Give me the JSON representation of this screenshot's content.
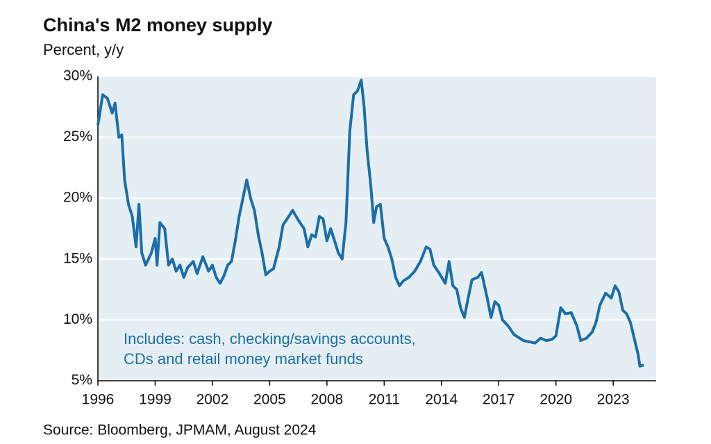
{
  "chart_data": {
    "type": "line",
    "title": "China's M2 money supply",
    "subtitle": "Percent, y/y",
    "source": "Source: Bloomberg, JPMAM, August 2024",
    "annotation": [
      "Includes: cash, checking/savings accounts,",
      "CDs and retail money market funds"
    ],
    "color": "#1b6ea7",
    "grid": true,
    "xlim": [
      1996,
      2025.25
    ],
    "xticks": [
      1996,
      1999,
      2002,
      2005,
      2008,
      2011,
      2014,
      2017,
      2020,
      2023
    ],
    "ylim": [
      5,
      30
    ],
    "yticks": [
      {
        "value": 5,
        "label": "5%"
      },
      {
        "value": 10,
        "label": "10%"
      },
      {
        "value": 15,
        "label": "15%"
      },
      {
        "value": 20,
        "label": "20%"
      },
      {
        "value": 25,
        "label": "25%"
      },
      {
        "value": 30,
        "label": "30%"
      }
    ],
    "x": [
      1996.0,
      1996.25,
      1996.5,
      1996.75,
      1996.9,
      1997.1,
      1997.25,
      1997.4,
      1997.6,
      1997.8,
      1998.0,
      1998.15,
      1998.3,
      1998.5,
      1998.8,
      1999.0,
      1999.1,
      1999.25,
      1999.5,
      1999.7,
      1999.9,
      2000.1,
      2000.3,
      2000.5,
      2000.7,
      2001.0,
      2001.2,
      2001.5,
      2001.8,
      2002.0,
      2002.2,
      2002.4,
      2002.6,
      2002.8,
      2003.0,
      2003.2,
      2003.4,
      2003.6,
      2003.8,
      2004.0,
      2004.2,
      2004.4,
      2004.6,
      2004.8,
      2005.0,
      2005.2,
      2005.5,
      2005.7,
      2006.0,
      2006.2,
      2006.5,
      2006.8,
      2007.0,
      2007.2,
      2007.4,
      2007.6,
      2007.8,
      2008.0,
      2008.2,
      2008.4,
      2008.6,
      2008.8,
      2009.0,
      2009.2,
      2009.4,
      2009.6,
      2009.8,
      2009.95,
      2010.1,
      2010.3,
      2010.45,
      2010.6,
      2010.8,
      2011.0,
      2011.2,
      2011.4,
      2011.6,
      2011.8,
      2012.0,
      2012.3,
      2012.6,
      2012.9,
      2013.2,
      2013.4,
      2013.6,
      2013.9,
      2014.2,
      2014.4,
      2014.6,
      2014.8,
      2015.0,
      2015.2,
      2015.4,
      2015.6,
      2015.9,
      2016.1,
      2016.4,
      2016.6,
      2016.8,
      2017.0,
      2017.2,
      2017.5,
      2017.8,
      2018.1,
      2018.3,
      2018.6,
      2018.9,
      2019.2,
      2019.5,
      2019.8,
      2020.0,
      2020.25,
      2020.5,
      2020.8,
      2021.1,
      2021.3,
      2021.6,
      2021.9,
      2022.1,
      2022.3,
      2022.6,
      2022.9,
      2023.1,
      2023.3,
      2023.5,
      2023.7,
      2023.9,
      2024.1,
      2024.3,
      2024.4,
      2024.6
    ],
    "values": [
      26,
      28.5,
      28.2,
      27,
      27.8,
      25,
      25.2,
      21.5,
      19.5,
      18.5,
      16,
      19.5,
      15.5,
      14.5,
      15.5,
      16.7,
      14.5,
      18,
      17.5,
      14.5,
      15,
      14,
      14.5,
      13.5,
      14.3,
      14.8,
      13.8,
      15.2,
      14,
      14.5,
      13.5,
      13,
      13.6,
      14.5,
      14.8,
      16.5,
      18.5,
      20,
      21.5,
      20,
      19,
      17,
      15.5,
      13.7,
      14,
      14.2,
      16,
      17.8,
      18.5,
      19,
      18.2,
      17.5,
      16,
      17,
      16.8,
      18.5,
      18.3,
      16.5,
      17.5,
      16.5,
      15.5,
      15,
      18,
      25.5,
      28.5,
      28.8,
      29.7,
      27.5,
      24,
      21,
      18,
      19.3,
      19.5,
      16.7,
      16,
      15,
      13.5,
      12.8,
      13.2,
      13.5,
      14,
      14.8,
      16,
      15.8,
      14.5,
      13.8,
      13,
      14.8,
      12.8,
      12.5,
      11,
      10.2,
      11.8,
      13.3,
      13.5,
      13.9,
      11.8,
      10.2,
      11.5,
      11.2,
      10,
      9.5,
      8.8,
      8.5,
      8.3,
      8.2,
      8.1,
      8.5,
      8.3,
      8.4,
      8.7,
      11,
      10.5,
      10.6,
      9.5,
      8.3,
      8.5,
      9,
      9.8,
      11.2,
      12.2,
      11.8,
      12.8,
      12.3,
      10.8,
      10.5,
      9.8,
      8.5,
      7.2,
      6.2,
      6.3
    ]
  }
}
